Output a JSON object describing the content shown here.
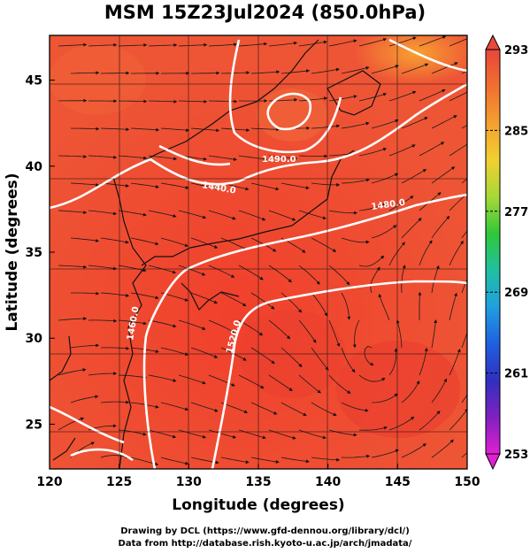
{
  "title": "MSM 15Z23Jul2024 (850.0hPa)",
  "axes": {
    "xlabel": "Longitude (degrees)",
    "ylabel": "Latitude  (degrees)",
    "xticks": [
      "120",
      "125",
      "130",
      "135",
      "140",
      "145",
      "150"
    ],
    "yticks": [
      "25",
      "30",
      "35",
      "40",
      "45"
    ],
    "x_range": [
      120,
      150
    ],
    "y_range": [
      22.4,
      47.6
    ]
  },
  "colorbar": {
    "labels": [
      "293",
      "285",
      "277",
      "269",
      "261",
      "253"
    ],
    "range": [
      253,
      293
    ],
    "colors_top_to_bottom": [
      "#e8453a",
      "#f07030",
      "#f4a030",
      "#f0d030",
      "#a8d838",
      "#30c838",
      "#20c0a0",
      "#20a0e0",
      "#2060e0",
      "#3030c0",
      "#8020c0",
      "#e020d0"
    ]
  },
  "contours": {
    "labels": [
      "1490.0",
      "1440.0",
      "1480.0",
      "1460.0",
      "1520.0"
    ],
    "color": "#ffffff"
  },
  "credits": {
    "line1": "Drawing by DCL (https://www.gfd-dennou.org/library/dcl/)",
    "line2": "Data from http://database.rish.kyoto-u.ac.jp/arch/jmadata/"
  }
}
